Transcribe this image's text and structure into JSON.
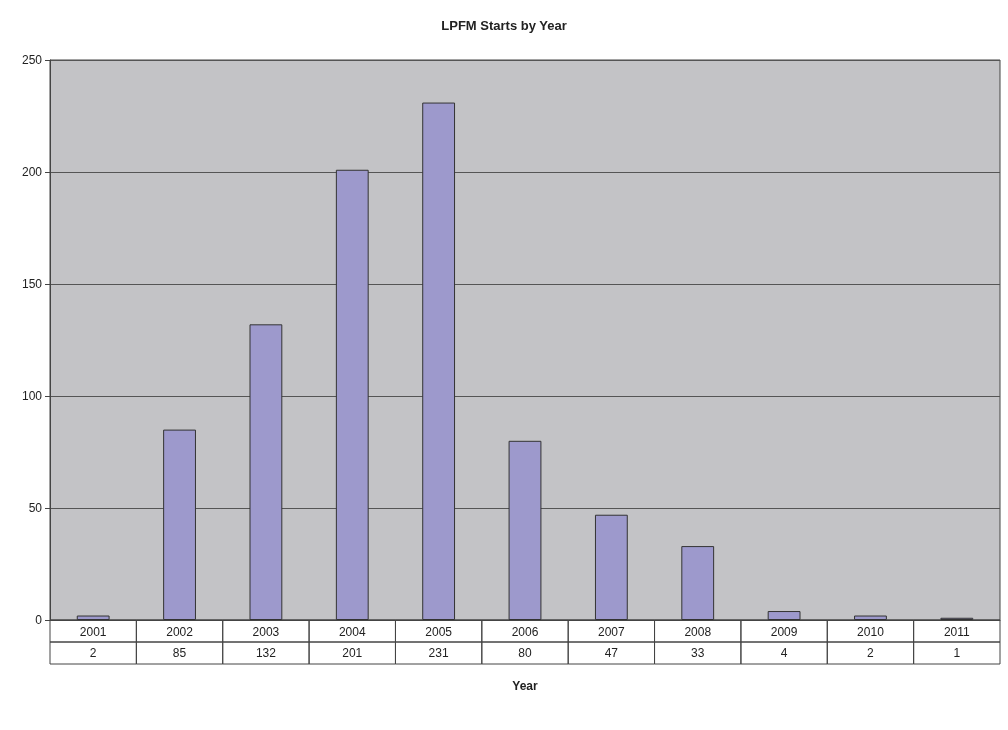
{
  "chart_data": {
    "type": "bar",
    "title": "LPFM Starts by Year",
    "xlabel": "Year",
    "categories": [
      "2001",
      "2002",
      "2003",
      "2004",
      "2005",
      "2006",
      "2007",
      "2008",
      "2009",
      "2010",
      "2011"
    ],
    "values": [
      2,
      85,
      132,
      201,
      231,
      80,
      47,
      33,
      4,
      2,
      1
    ],
    "color": "#9d99cc",
    "ylim": [
      0,
      250
    ],
    "yticks": [
      0,
      50,
      100,
      150,
      200,
      250
    ],
    "grid": "y",
    "data_labels": true
  }
}
